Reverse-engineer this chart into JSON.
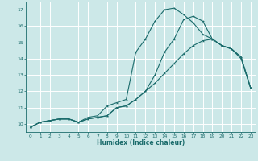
{
  "background_color": "#cce8e8",
  "grid_color": "#ffffff",
  "line_color": "#1a6b6b",
  "xlabel": "Humidex (Indice chaleur)",
  "xlim": [
    -0.5,
    23.5
  ],
  "ylim": [
    9.5,
    17.5
  ],
  "xticks": [
    0,
    1,
    2,
    3,
    4,
    5,
    6,
    7,
    8,
    9,
    10,
    11,
    12,
    13,
    14,
    15,
    16,
    17,
    18,
    19,
    20,
    21,
    22,
    23
  ],
  "yticks": [
    10,
    11,
    12,
    13,
    14,
    15,
    16,
    17
  ],
  "line1_x": [
    0,
    1,
    2,
    3,
    4,
    5,
    6,
    7,
    8,
    9,
    10,
    11,
    12,
    13,
    14,
    15,
    16,
    17,
    18,
    19,
    20,
    21,
    22,
    23
  ],
  "line1_y": [
    9.8,
    10.1,
    10.2,
    10.3,
    10.3,
    10.1,
    10.3,
    10.4,
    10.5,
    11.0,
    11.1,
    11.5,
    12.0,
    12.5,
    13.1,
    13.7,
    14.3,
    14.8,
    15.1,
    15.2,
    14.8,
    14.6,
    14.1,
    12.2
  ],
  "line2_x": [
    0,
    1,
    2,
    3,
    4,
    5,
    6,
    7,
    8,
    9,
    10,
    11,
    12,
    13,
    14,
    15,
    16,
    17,
    18,
    19,
    20,
    21,
    22,
    23
  ],
  "line2_y": [
    9.8,
    10.1,
    10.2,
    10.3,
    10.3,
    10.1,
    10.4,
    10.5,
    11.1,
    11.3,
    11.5,
    14.4,
    15.2,
    16.3,
    17.0,
    17.1,
    16.7,
    16.2,
    15.5,
    15.2,
    14.8,
    14.6,
    14.0,
    12.2
  ],
  "line3_x": [
    0,
    1,
    2,
    3,
    4,
    5,
    6,
    7,
    8,
    9,
    10,
    11,
    12,
    13,
    14,
    15,
    16,
    17,
    18,
    19,
    20,
    21,
    22,
    23
  ],
  "line3_y": [
    9.8,
    10.1,
    10.2,
    10.3,
    10.3,
    10.1,
    10.3,
    10.4,
    10.5,
    11.0,
    11.1,
    11.5,
    12.0,
    13.0,
    14.4,
    15.2,
    16.4,
    16.6,
    16.3,
    15.2,
    14.8,
    14.6,
    14.1,
    12.2
  ]
}
